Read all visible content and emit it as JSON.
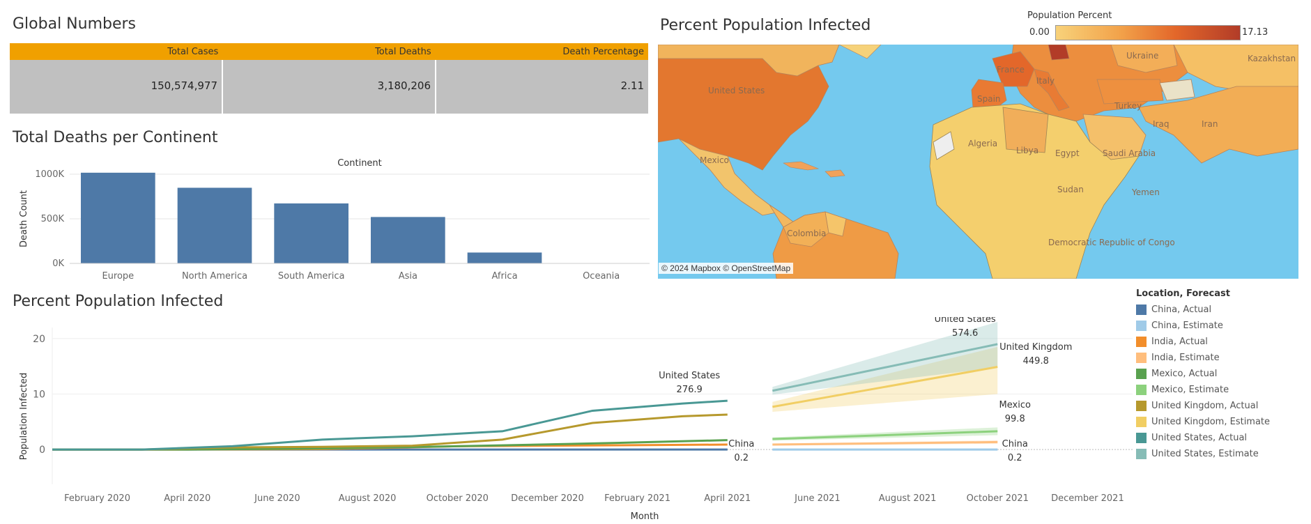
{
  "global_numbers": {
    "title": "Global Numbers",
    "headers": [
      "Total Cases",
      "Total Deaths",
      "Death Percentage"
    ],
    "values": [
      "150,574,977",
      "3,180,206",
      "2.11"
    ],
    "header_color": "#f0a000",
    "body_color": "#c0c0c0"
  },
  "map": {
    "title": "Percent Population Infected",
    "legend_title": "Population Percent",
    "legend_min": "0.00",
    "legend_max": "17.13",
    "credit": "© 2024 Mapbox © OpenStreetMap",
    "water_color": "#74c9ee",
    "labels": [
      "United States",
      "Mexico",
      "Colombia",
      "France",
      "Spain",
      "Italy",
      "Ukraine",
      "Kazakhstan",
      "Turkey",
      "Iraq",
      "Iran",
      "Algeria",
      "Libya",
      "Egypt",
      "Saudi Arabia",
      "Sudan",
      "Yemen",
      "Democratic Republic of Congo"
    ]
  },
  "chart_data": [
    {
      "type": "bar",
      "title": "Total Deaths per Continent",
      "header": "Continent",
      "categories": [
        "Europe",
        "North America",
        "South America",
        "Asia",
        "Africa",
        "Oceania"
      ],
      "values": [
        1016750,
        847942,
        672415,
        520269,
        121784,
        1046
      ],
      "ylabel": "Death Count",
      "yticks": [
        "0K",
        "500K",
        "1000K"
      ],
      "ylim": [
        0,
        1000000
      ],
      "color": "#4e79a7"
    },
    {
      "type": "line",
      "title": "Percent Population Infected",
      "xlabel": "Month",
      "ylabel": "Population Infected",
      "yticks": [
        0,
        10,
        20
      ],
      "ylim": [
        -5,
        22
      ],
      "xticks": [
        "February 2020",
        "April 2020",
        "June 2020",
        "August 2020",
        "October 2020",
        "December 2020",
        "February 2021",
        "April 2021",
        "June 2021",
        "August 2021",
        "October 2021",
        "December 2021"
      ],
      "legend_title": "Location, Forecast",
      "legend_position": "right",
      "series": [
        {
          "name": "China, Actual",
          "color": "#4e79a7",
          "kind": "actual",
          "x": [
            "2020-01",
            "2020-04",
            "2020-07",
            "2020-10",
            "2021-01",
            "2021-04"
          ],
          "y": [
            0,
            0.01,
            0.01,
            0.01,
            0.01,
            0.01
          ]
        },
        {
          "name": "China, Estimate",
          "color": "#a0cbe8",
          "kind": "estimate",
          "x": [
            "2021-05",
            "2021-10"
          ],
          "y": [
            0.01,
            0.01
          ],
          "band": [
            [
              -0.2,
              0.2
            ],
            [
              -0.2,
              0.2
            ]
          ]
        },
        {
          "name": "India, Actual",
          "color": "#f28e2b",
          "kind": "actual",
          "x": [
            "2020-01",
            "2020-04",
            "2020-07",
            "2020-10",
            "2021-01",
            "2021-04"
          ],
          "y": [
            0,
            0.01,
            0.08,
            0.6,
            0.75,
            0.9
          ]
        },
        {
          "name": "India, Estimate",
          "color": "#ffbe7d",
          "kind": "estimate",
          "x": [
            "2021-05",
            "2021-10"
          ],
          "y": [
            0.9,
            1.35
          ],
          "band": [
            [
              0.7,
              1.1
            ],
            [
              1.05,
              1.65
            ]
          ]
        },
        {
          "name": "Mexico, Actual",
          "color": "#59a14f",
          "kind": "actual",
          "x": [
            "2020-01",
            "2020-04",
            "2020-07",
            "2020-10",
            "2021-01",
            "2021-04"
          ],
          "y": [
            0,
            0.01,
            0.2,
            0.6,
            1.1,
            1.7
          ]
        },
        {
          "name": "Mexico, Estimate",
          "color": "#8cd17d",
          "kind": "estimate",
          "x": [
            "2021-05",
            "2021-10"
          ],
          "y": [
            1.9,
            3.3
          ],
          "band": [
            [
              1.6,
              2.2
            ],
            [
              2.6,
              4.0
            ]
          ]
        },
        {
          "name": "United Kingdom, Actual",
          "color": "#b6992d",
          "kind": "actual",
          "x": [
            "2020-01",
            "2020-03",
            "2020-05",
            "2020-07",
            "2020-09",
            "2020-11",
            "2021-01",
            "2021-03",
            "2021-04"
          ],
          "y": [
            0,
            0.01,
            0.4,
            0.5,
            0.7,
            1.8,
            4.8,
            6.0,
            6.3
          ]
        },
        {
          "name": "United Kingdom, Estimate",
          "color": "#f1ce63",
          "kind": "estimate",
          "x": [
            "2021-05",
            "2021-10"
          ],
          "y": [
            7.7,
            14.9
          ],
          "band": [
            [
              6.8,
              8.6
            ],
            [
              10.0,
              18.5
            ]
          ]
        },
        {
          "name": "United States, Actual",
          "color": "#499894",
          "kind": "actual",
          "x": [
            "2020-01",
            "2020-03",
            "2020-05",
            "2020-07",
            "2020-09",
            "2020-11",
            "2021-01",
            "2021-03",
            "2021-04"
          ],
          "y": [
            0,
            0.01,
            0.6,
            1.8,
            2.4,
            3.3,
            7.0,
            8.3,
            8.8
          ]
        },
        {
          "name": "United States, Estimate",
          "color": "#86bcb6",
          "kind": "estimate",
          "x": [
            "2021-05",
            "2021-10"
          ],
          "y": [
            10.6,
            19.0
          ],
          "band": [
            [
              9.9,
              11.3
            ],
            [
              14.8,
              23.0
            ]
          ]
        }
      ],
      "annotations": [
        {
          "label": "United States",
          "value": "276.9"
        },
        {
          "label": "China",
          "value": "0.2"
        },
        {
          "label": "United States",
          "value": "574.6"
        },
        {
          "label": "United Kingdom",
          "value": "449.8"
        },
        {
          "label": "Mexico",
          "value": "99.8"
        },
        {
          "label": "China",
          "value": "0.2"
        }
      ]
    }
  ],
  "colors": {
    "map_low": "#f8d27a",
    "map_high": "#b23c28"
  }
}
